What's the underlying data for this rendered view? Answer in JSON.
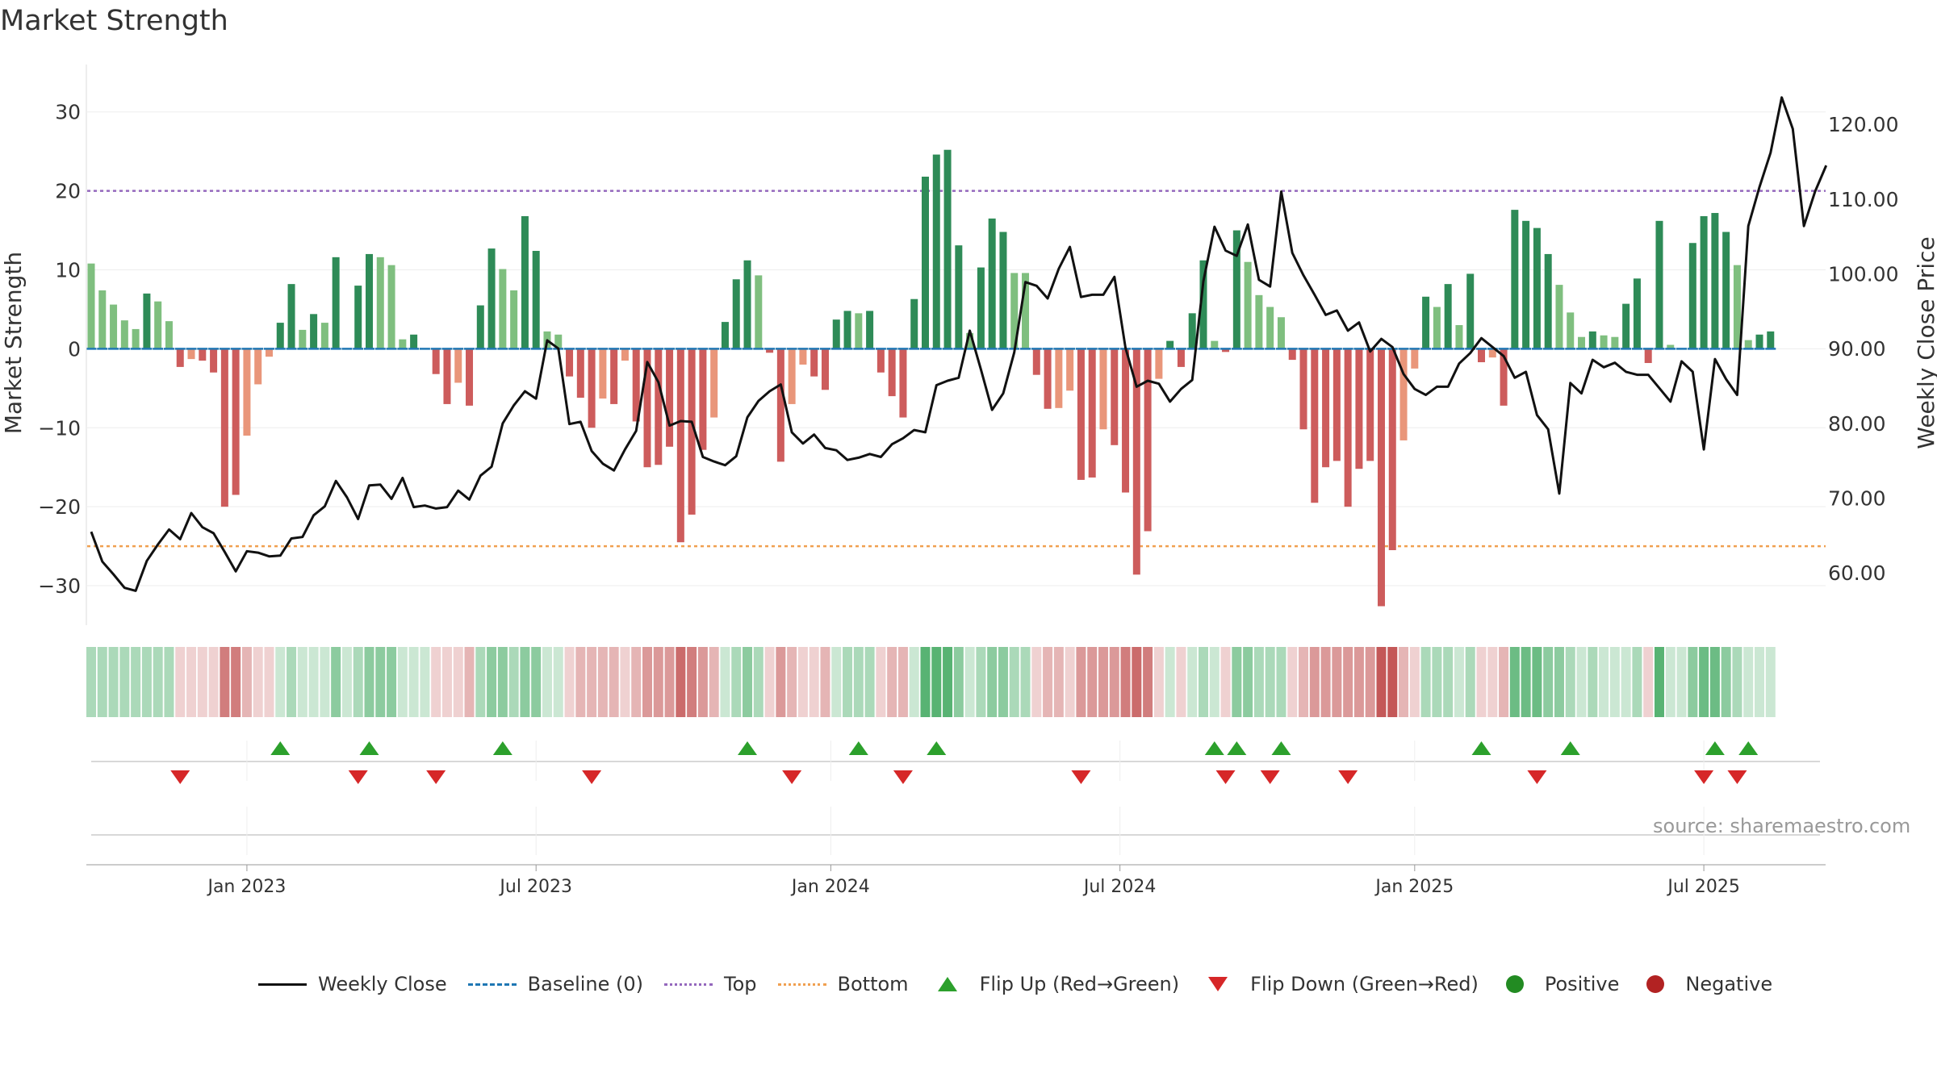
{
  "chart_data": {
    "type": "bar",
    "title": "Market Strength",
    "ylabel_left": "Market Strength",
    "ylabel_right": "Weekly Close Price",
    "ylim_left": [
      -35,
      36
    ],
    "ylim_right": [
      53,
      128
    ],
    "left_ticks": [
      {
        "value": 30,
        "label": "30"
      },
      {
        "value": 20,
        "label": "20"
      },
      {
        "value": 10,
        "label": "10"
      },
      {
        "value": 0,
        "label": "0"
      },
      {
        "value": -10,
        "label": "−10"
      },
      {
        "value": -20,
        "label": "−20"
      },
      {
        "value": -30,
        "label": "−30"
      }
    ],
    "right_ticks": [
      {
        "value": 120,
        "label": "120.00"
      },
      {
        "value": 110,
        "label": "110.00"
      },
      {
        "value": 100,
        "label": "100.00"
      },
      {
        "value": 90,
        "label": "90.00"
      },
      {
        "value": 80,
        "label": "80.00"
      },
      {
        "value": 70,
        "label": "70.00"
      },
      {
        "value": 60,
        "label": "60.00"
      }
    ],
    "x_ticks": [
      {
        "week": 14,
        "label": "Jan 2023"
      },
      {
        "week": 40,
        "label": "Jul 2023"
      },
      {
        "week": 66.5,
        "label": "Jan 2024"
      },
      {
        "week": 92.5,
        "label": "Jul 2024"
      },
      {
        "week": 119,
        "label": "Jan 2025"
      },
      {
        "week": 145,
        "label": "Jul 2025"
      }
    ],
    "top_line": 20,
    "bottom_line": -25,
    "strength": [
      10.8,
      7.4,
      5.6,
      3.6,
      2.5,
      7,
      6,
      3.5,
      -2.3,
      -1.3,
      -1.5,
      -3,
      -20,
      -18.5,
      -11,
      -4.5,
      -1,
      3.3,
      8.2,
      2.4,
      4.4,
      3.3,
      11.6,
      0,
      8,
      12,
      11.6,
      10.6,
      1.2,
      1.8,
      0,
      -3.2,
      -7,
      -4.3,
      -7.2,
      5.5,
      12.7,
      10.1,
      7.4,
      16.8,
      12.4,
      2.2,
      1.8,
      -3.5,
      -6.2,
      -10,
      -6.3,
      -7,
      -1.5,
      -9.2,
      -15,
      -14.7,
      -12.4,
      -24.5,
      -21,
      -12.8,
      -8.7,
      3.4,
      8.8,
      11.2,
      9.3,
      -0.5,
      -14.3,
      -7,
      -2,
      -3.5,
      -5.2,
      3.7,
      4.8,
      4.5,
      4.8,
      -3,
      -6,
      -8.7,
      6.3,
      21.8,
      24.6,
      25.2,
      13.1,
      2,
      10.3,
      16.5,
      14.8,
      9.6,
      9.6,
      -3.3,
      -7.6,
      -7.5,
      -5.3,
      -16.6,
      -16.3,
      -10.2,
      -12.2,
      -18.2,
      -28.6,
      -23.1,
      -3.8,
      1,
      -2.3,
      4.5,
      11.2,
      1,
      -0.4,
      15,
      11,
      6.8,
      5.3,
      4,
      -1.4,
      -10.2,
      -19.5,
      -15,
      -14.2,
      -20,
      -15.2,
      -14.2,
      -32.6,
      -25.5,
      -11.6,
      -2.5,
      6.6,
      5.3,
      8.2,
      3,
      9.5,
      -1.7,
      -1.1,
      -7.2,
      17.6,
      16.2,
      15.3,
      12,
      8.1,
      4.6,
      1.5,
      2.2,
      1.7,
      1.5,
      5.7,
      8.9,
      -1.8,
      16.2,
      0.5,
      0,
      13.4,
      16.8,
      17.2,
      14.8,
      10.6,
      1.1,
      1.8,
      2.2
    ],
    "weekly_close": [
      65.5,
      61.5,
      59.8,
      58,
      57.6,
      61.6,
      63.8,
      65.8,
      64.5,
      68,
      66.1,
      65.3,
      62.8,
      60.2,
      62.9,
      62.7,
      62.2,
      62.3,
      64.6,
      64.8,
      67.7,
      68.9,
      72.3,
      70.1,
      67.2,
      71.7,
      71.8,
      69.9,
      72.7,
      68.8,
      69,
      68.6,
      68.8,
      71,
      69.8,
      73,
      74.2,
      80,
      82.4,
      84.3,
      83.3,
      91.1,
      90,
      79.9,
      80.2,
      76.3,
      74.6,
      73.7,
      76.5,
      79,
      88.2,
      85.5,
      79.7,
      80.3,
      80.2,
      75.5,
      74.9,
      74.4,
      75.6,
      80.8,
      83,
      84.3,
      85.2,
      78.8,
      77.3,
      78.5,
      76.7,
      76.4,
      75.1,
      75.4,
      75.9,
      75.5,
      77.2,
      78,
      79.1,
      78.8,
      85.1,
      85.7,
      86.1,
      92.4,
      87.2,
      81.8,
      84,
      89.5,
      98.9,
      98.4,
      96.7,
      100.7,
      103.6,
      96.9,
      97.2,
      97.2,
      99.6,
      90.1,
      84.9,
      85.7,
      85.3,
      82.9,
      84.6,
      85.8,
      99,
      106.3,
      103.1,
      102.4,
      106.6,
      99.2,
      98.3,
      111,
      102.8,
      99.8,
      97.2,
      94.5,
      95.1,
      92.4,
      93.5,
      89.6,
      91.3,
      90.2,
      86.6,
      84.6,
      83.8,
      84.9,
      84.9,
      88,
      89.4,
      91.4,
      90.2,
      89,
      86.1,
      86.9,
      81.1,
      79.2,
      70.6,
      85.4,
      84,
      88.5,
      87.5,
      88.1,
      86.9,
      86.5,
      86.5,
      84.7,
      82.9,
      88.3,
      86.9,
      76.5,
      88.6,
      85.9,
      83.8,
      106.4,
      111.6,
      116.2,
      123.6,
      119.4,
      106.4,
      111,
      114.5
    ],
    "band_intensity": [
      0.4,
      0.4,
      0.4,
      0.4,
      0.4,
      0.4,
      0.4,
      0.4,
      0.25,
      0.25,
      0.25,
      0.25,
      0.7,
      0.7,
      0.4,
      0.25,
      0.25,
      0.25,
      0.4,
      0.25,
      0.25,
      0.25,
      0.55,
      0.25,
      0.4,
      0.55,
      0.55,
      0.55,
      0.25,
      0.25,
      0.25,
      0.25,
      0.25,
      0.25,
      0.4,
      0.4,
      0.55,
      0.55,
      0.4,
      0.55,
      0.55,
      0.25,
      0.25,
      0.25,
      0.4,
      0.4,
      0.4,
      0.4,
      0.25,
      0.4,
      0.55,
      0.55,
      0.55,
      0.8,
      0.7,
      0.55,
      0.4,
      0.25,
      0.4,
      0.55,
      0.4,
      0.25,
      0.55,
      0.4,
      0.25,
      0.25,
      0.4,
      0.25,
      0.4,
      0.4,
      0.4,
      0.25,
      0.4,
      0.4,
      0.25,
      0.8,
      0.8,
      0.8,
      0.55,
      0.25,
      0.4,
      0.55,
      0.55,
      0.4,
      0.4,
      0.25,
      0.4,
      0.4,
      0.25,
      0.55,
      0.55,
      0.55,
      0.55,
      0.7,
      0.8,
      0.7,
      0.25,
      0.25,
      0.25,
      0.25,
      0.4,
      0.25,
      0.25,
      0.55,
      0.55,
      0.4,
      0.4,
      0.4,
      0.25,
      0.4,
      0.55,
      0.55,
      0.55,
      0.55,
      0.55,
      0.55,
      0.9,
      0.9,
      0.4,
      0.25,
      0.4,
      0.4,
      0.4,
      0.25,
      0.4,
      0.25,
      0.25,
      0.4,
      0.7,
      0.7,
      0.7,
      0.55,
      0.55,
      0.4,
      0.25,
      0.4,
      0.25,
      0.25,
      0.25,
      0.4,
      0.25,
      0.8,
      0.25,
      0.25,
      0.55,
      0.7,
      0.7,
      0.55,
      0.4,
      0.25,
      0.25,
      0.25
    ],
    "flip_up_weeks": [
      17,
      25,
      37,
      59,
      69,
      76,
      101,
      103,
      107,
      125,
      133,
      146,
      149
    ],
    "flip_down_weeks": [
      8,
      24,
      31,
      45,
      63,
      73,
      89,
      102,
      106,
      113,
      130,
      145,
      148
    ]
  },
  "legend": {
    "weekly_close": "Weekly Close",
    "baseline": "Baseline (0)",
    "top": "Top",
    "bottom": "Bottom",
    "flip_up": "Flip Up (Red→Green)",
    "flip_down": "Flip Down (Green→Red)",
    "positive": "Positive",
    "negative": "Negative"
  },
  "source": "source: sharemaestro.com",
  "colors": {
    "dark_green": "#2e8b57",
    "light_green": "#7fbf7f",
    "dark_red": "#cd5c5c",
    "light_red": "#e9967a",
    "line": "#111111",
    "baseline": "#1f77b4",
    "top": "#9467bd",
    "bottom": "#f0a050",
    "flip_up": "#2ca02c",
    "flip_down": "#d62728",
    "positive": "#228b22",
    "negative": "#b22222"
  }
}
